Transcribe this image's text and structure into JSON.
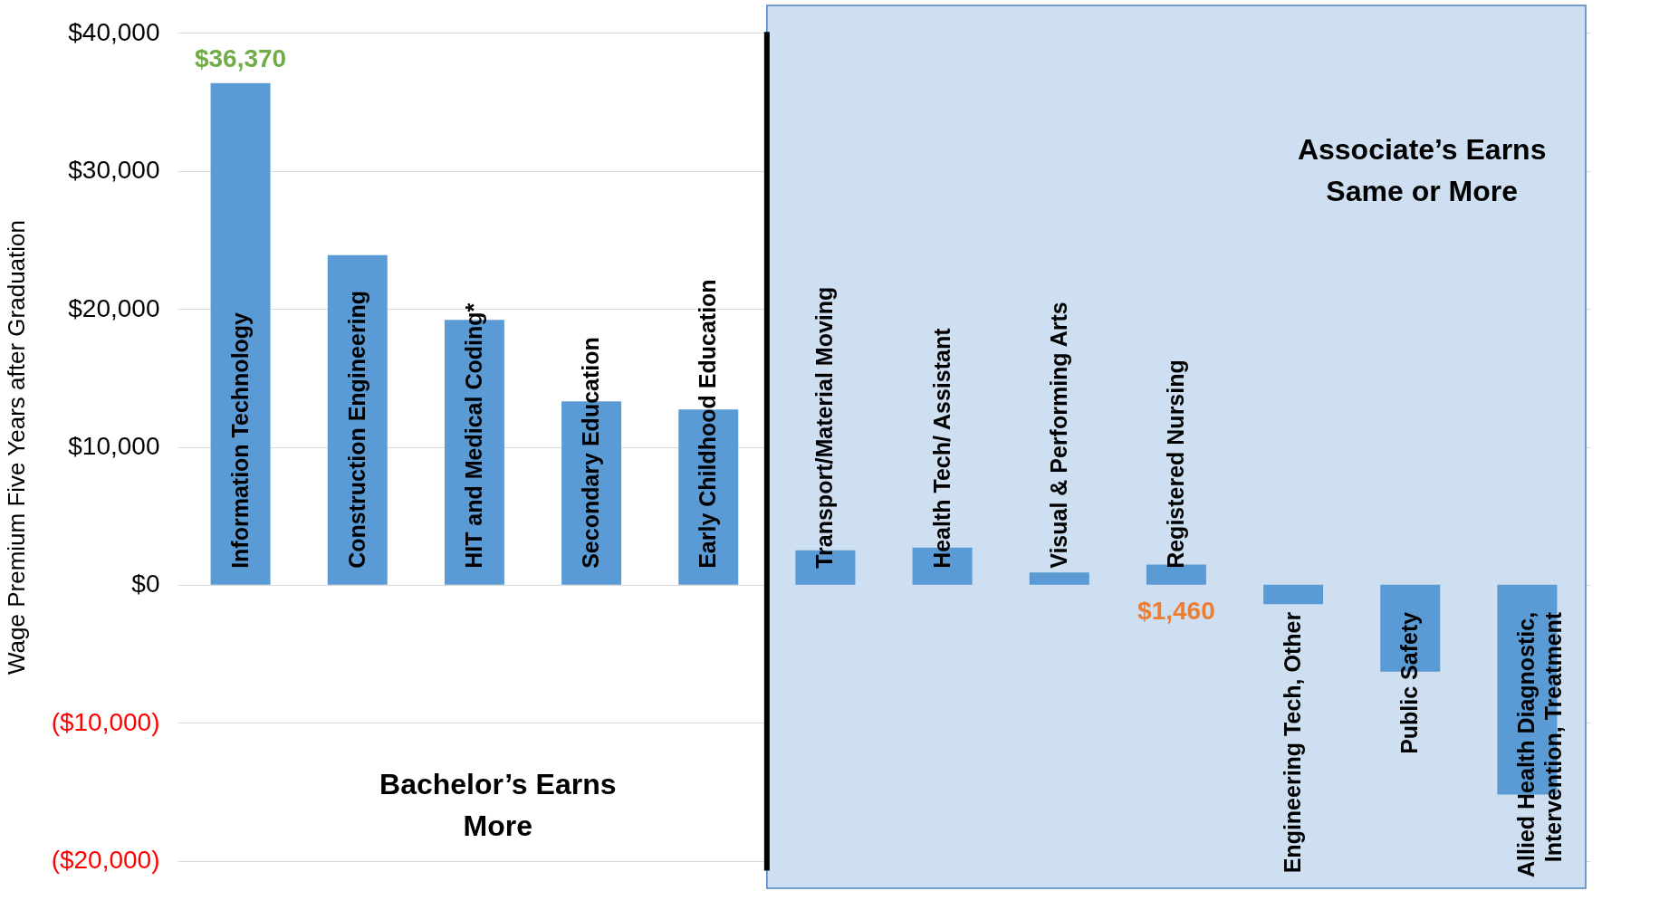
{
  "chart_data": {
    "type": "bar",
    "ylabel": "Wage Premium Five Years after Graduation",
    "categories": [
      "Information Technology",
      "Construction Engineering",
      "HIT and Medical Coding*",
      "Secondary Education",
      "Early Childhood Education",
      "Transport/Material Moving",
      "Health Tech/ Assistant",
      "Visual & Performing Arts",
      "Registered Nursing",
      "Engineering Tech, Other",
      "Public Safety",
      "Allied Health Diagnostic, Intervention, Treatment"
    ],
    "values": [
      36370,
      23900,
      19200,
      13300,
      12700,
      2500,
      2700,
      900,
      1460,
      -1400,
      -6300,
      -15200
    ],
    "value_labels": [
      "$36,370",
      null,
      null,
      null,
      null,
      null,
      null,
      null,
      "$1,460",
      null,
      null,
      null
    ],
    "color": "#5b9bd5",
    "ylim": [
      -22000,
      42000
    ],
    "yticks": [
      {
        "value": -20000,
        "label": "($20,000)"
      },
      {
        "value": -10000,
        "label": "($10,000)"
      },
      {
        "value": 0,
        "label": "$0"
      },
      {
        "value": 10000,
        "label": "$10,000"
      },
      {
        "value": 20000,
        "label": "$20,000"
      },
      {
        "value": 30000,
        "label": "$30,000"
      },
      {
        "value": 40000,
        "label": "$40,000"
      }
    ],
    "grid": "y",
    "bands": [
      {
        "axis": "x",
        "from": "Transport/Material Moving",
        "to": "Allied Health Diagnostic, Intervention, Treatment",
        "color": "#cddff0"
      }
    ],
    "ref_lines": [
      {
        "axis": "x",
        "value": "Transport/Material Moving",
        "color": "#000000"
      }
    ],
    "annotations": [
      "Bachelor’s Earns More",
      "Associate’s Earns Same or More"
    ]
  }
}
